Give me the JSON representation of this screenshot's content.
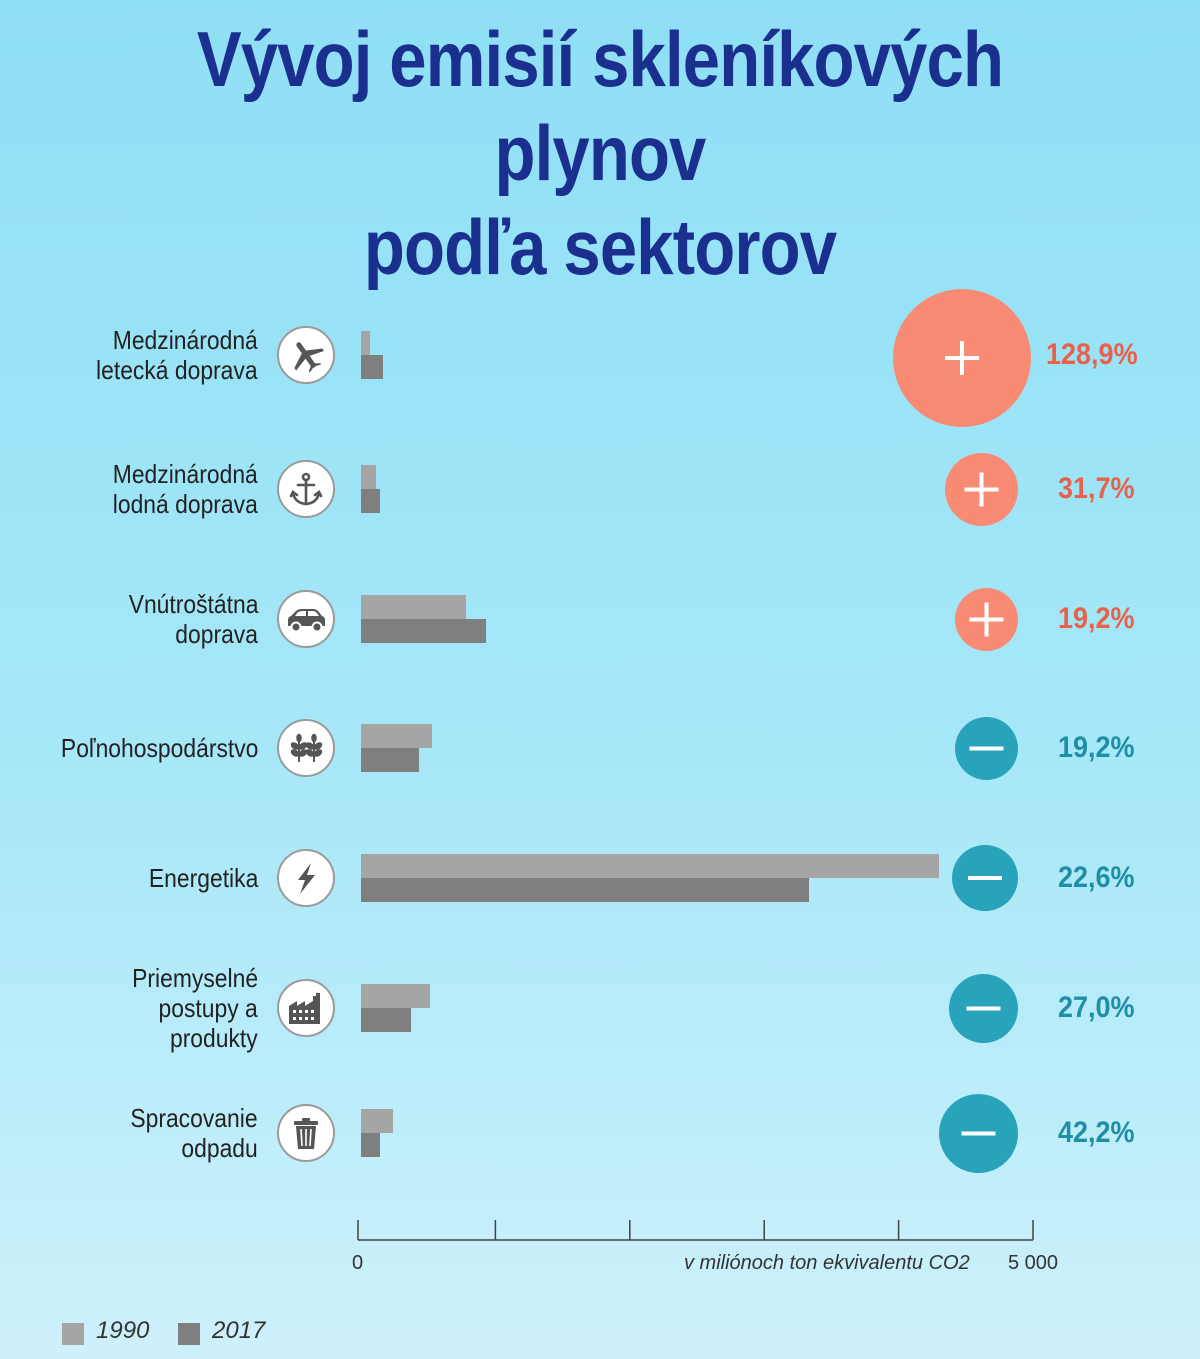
{
  "title_line1": "Vývoj emisií skleníkových plynov",
  "title_line2": "podľa sektorov",
  "axis": {
    "min_label": "0",
    "max_label": "5 000",
    "unit_label": "v miliónoch ton ekvivalentu CO2"
  },
  "legend": [
    {
      "label": "1990",
      "color": "#a5a5a5"
    },
    {
      "label": "2017",
      "color": "#7f7f7f"
    }
  ],
  "colors": {
    "increase": "#f98a74",
    "decrease": "#29a3ba"
  },
  "rows": [
    {
      "label_lines": [
        "Medzinárodná",
        "letecká doprava"
      ],
      "icon": "airplane-icon",
      "sign": "+",
      "change_text": "128,9%"
    },
    {
      "label_lines": [
        "Medzinárodná",
        "lodná doprava"
      ],
      "icon": "anchor-icon",
      "sign": "+",
      "change_text": "31,7%"
    },
    {
      "label_lines": [
        "Vnútroštátna",
        "doprava"
      ],
      "icon": "car-icon",
      "sign": "+",
      "change_text": "19,2%"
    },
    {
      "label_lines": [
        "Poľnohospodárstvo"
      ],
      "icon": "plant-icon",
      "sign": "−",
      "change_text": "19,2%"
    },
    {
      "label_lines": [
        "Energetika"
      ],
      "icon": "lightning-icon",
      "sign": "−",
      "change_text": "22,6%"
    },
    {
      "label_lines": [
        "Priemyselné",
        "postupy a",
        "produkty"
      ],
      "icon": "factory-icon",
      "sign": "−",
      "change_text": "27,0%"
    },
    {
      "label_lines": [
        "Spracovanie",
        "odpadu"
      ],
      "icon": "trash-can-icon",
      "sign": "−",
      "change_text": "42,2%"
    }
  ],
  "chart_data": {
    "type": "bar",
    "orientation": "horizontal",
    "categories": [
      "Medzinárodná letecká doprava",
      "Medzinárodná lodná doprava",
      "Vnútroštátna doprava",
      "Poľnohospodárstvo",
      "Energetika",
      "Priemyselné postupy a produkty",
      "Spracovanie odpadu"
    ],
    "series": [
      {
        "name": "1990",
        "values": [
          70,
          110,
          780,
          530,
          4300,
          510,
          240
        ]
      },
      {
        "name": "2017",
        "values": [
          160,
          145,
          930,
          430,
          3330,
          370,
          140
        ]
      }
    ],
    "change_percent": [
      128.9,
      31.7,
      19.2,
      -19.2,
      -22.6,
      -27.0,
      -42.2
    ],
    "xlabel": "v miliónoch ton ekvivalentu CO2",
    "xlim": [
      0,
      5000
    ],
    "ticks": [
      0,
      1000,
      2000,
      3000,
      4000,
      5000
    ],
    "tick_labels_shown": [
      "0",
      "5 000"
    ],
    "legend_position": "bottom-left",
    "grid": false
  }
}
